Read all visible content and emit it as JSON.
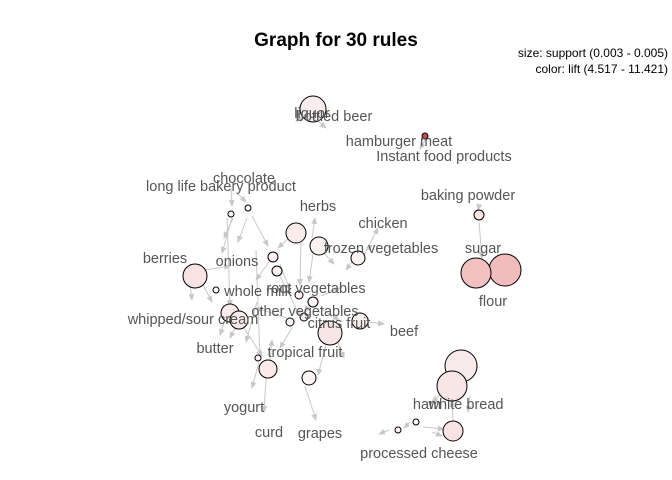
{
  "title": "Graph for 30 rules",
  "legend": {
    "size": "size: support (0.003 - 0.005)",
    "color": "color: lift (4.517 - 11.421)"
  },
  "item_labels": [
    "liquor",
    "bottled beer",
    "hamburger meat",
    "Instant food products",
    "baking powder",
    "chicken",
    "herbs",
    "chocolate",
    "long life bakery product",
    "frozen vegetables",
    "sugar",
    "berries",
    "onions",
    "whole milk",
    "root vegetables",
    "other vegetables",
    "whipped/sour cream",
    "citrus fruit",
    "beef",
    "butter",
    "tropical fruit",
    "flour",
    "yogurt",
    "curd",
    "grapes",
    "ham",
    "white bread",
    "processed cheese"
  ]
}
